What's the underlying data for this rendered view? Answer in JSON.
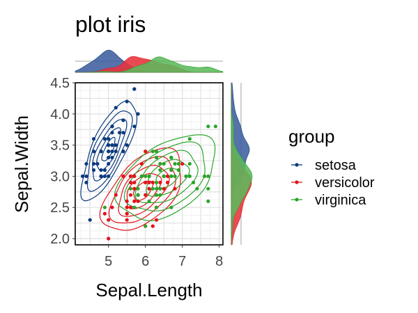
{
  "chart_data": {
    "type": "scatter",
    "title": "plot iris",
    "xlabel": "Sepal.Length",
    "ylabel": "Sepal.Width",
    "xlim": [
      4.1,
      8.1
    ],
    "ylim": [
      1.9,
      4.5
    ],
    "x_ticks": [
      5,
      6,
      7,
      8
    ],
    "y_ticks": [
      2.0,
      2.5,
      3.0,
      3.5,
      4.0,
      4.5
    ],
    "x_tick_labels": [
      "5",
      "6",
      "7",
      "8"
    ],
    "y_tick_labels": [
      "2.0",
      "2.5",
      "3.0",
      "3.5",
      "4.0",
      "4.5"
    ],
    "grid": true,
    "marginal_density": true,
    "density_contours": true,
    "legend": {
      "title": "group",
      "position": "right"
    },
    "series": [
      {
        "name": "setosa",
        "color": "#0b3a7e",
        "fill": "#3f5f9e",
        "points": [
          [
            5.1,
            3.5
          ],
          [
            4.9,
            3.0
          ],
          [
            4.7,
            3.2
          ],
          [
            4.6,
            3.1
          ],
          [
            5.0,
            3.6
          ],
          [
            5.4,
            3.9
          ],
          [
            4.6,
            3.4
          ],
          [
            5.0,
            3.4
          ],
          [
            4.4,
            2.9
          ],
          [
            4.9,
            3.1
          ],
          [
            5.4,
            3.7
          ],
          [
            4.8,
            3.4
          ],
          [
            4.8,
            3.0
          ],
          [
            4.3,
            3.0
          ],
          [
            5.8,
            4.0
          ],
          [
            5.7,
            4.4
          ],
          [
            5.4,
            3.9
          ],
          [
            5.1,
            3.5
          ],
          [
            5.7,
            3.8
          ],
          [
            5.1,
            3.8
          ],
          [
            5.4,
            3.4
          ],
          [
            5.1,
            3.7
          ],
          [
            4.6,
            3.6
          ],
          [
            5.1,
            3.3
          ],
          [
            4.8,
            3.4
          ],
          [
            5.0,
            3.0
          ],
          [
            5.0,
            3.4
          ],
          [
            5.2,
            3.5
          ],
          [
            5.2,
            3.4
          ],
          [
            4.7,
            3.2
          ],
          [
            4.8,
            3.1
          ],
          [
            5.4,
            3.4
          ],
          [
            5.2,
            4.1
          ],
          [
            5.5,
            4.2
          ],
          [
            4.9,
            3.1
          ],
          [
            5.0,
            3.2
          ],
          [
            5.5,
            3.5
          ],
          [
            4.9,
            3.6
          ],
          [
            4.4,
            3.0
          ],
          [
            5.1,
            3.4
          ],
          [
            5.0,
            3.5
          ],
          [
            4.5,
            2.3
          ],
          [
            4.4,
            3.2
          ],
          [
            5.0,
            3.5
          ],
          [
            5.1,
            3.8
          ],
          [
            4.8,
            3.0
          ],
          [
            5.1,
            3.8
          ],
          [
            4.6,
            3.2
          ],
          [
            5.3,
            3.7
          ],
          [
            5.0,
            3.3
          ]
        ]
      },
      {
        "name": "versicolor",
        "color": "#e3121b",
        "fill": "#e8323b",
        "points": [
          [
            7.0,
            3.2
          ],
          [
            6.4,
            3.2
          ],
          [
            6.9,
            3.1
          ],
          [
            5.5,
            2.3
          ],
          [
            6.5,
            2.8
          ],
          [
            5.7,
            2.8
          ],
          [
            6.3,
            3.3
          ],
          [
            4.9,
            2.4
          ],
          [
            6.6,
            2.9
          ],
          [
            5.2,
            2.7
          ],
          [
            5.0,
            2.0
          ],
          [
            5.9,
            3.0
          ],
          [
            6.0,
            2.2
          ],
          [
            6.1,
            2.9
          ],
          [
            5.6,
            2.9
          ],
          [
            6.7,
            3.1
          ],
          [
            5.6,
            3.0
          ],
          [
            5.8,
            2.7
          ],
          [
            6.2,
            2.2
          ],
          [
            5.6,
            2.5
          ],
          [
            5.9,
            3.2
          ],
          [
            6.1,
            2.8
          ],
          [
            6.3,
            2.5
          ],
          [
            6.1,
            2.8
          ],
          [
            6.4,
            2.9
          ],
          [
            6.6,
            3.0
          ],
          [
            6.8,
            2.8
          ],
          [
            6.7,
            3.0
          ],
          [
            6.0,
            2.9
          ],
          [
            5.7,
            2.6
          ],
          [
            5.5,
            2.4
          ],
          [
            5.5,
            2.4
          ],
          [
            5.8,
            2.7
          ],
          [
            6.0,
            2.7
          ],
          [
            5.4,
            3.0
          ],
          [
            6.0,
            3.4
          ],
          [
            6.7,
            3.1
          ],
          [
            6.3,
            2.3
          ],
          [
            5.6,
            3.0
          ],
          [
            5.5,
            2.5
          ],
          [
            5.5,
            2.6
          ],
          [
            6.1,
            3.0
          ],
          [
            5.8,
            2.6
          ],
          [
            5.0,
            2.3
          ],
          [
            5.6,
            2.7
          ],
          [
            5.7,
            3.0
          ],
          [
            5.7,
            2.9
          ],
          [
            6.2,
            2.9
          ],
          [
            5.1,
            2.5
          ],
          [
            5.7,
            2.8
          ]
        ]
      },
      {
        "name": "virginica",
        "color": "#2aa52a",
        "fill": "#5cb85c",
        "points": [
          [
            6.3,
            3.3
          ],
          [
            5.8,
            2.7
          ],
          [
            7.1,
            3.0
          ],
          [
            6.3,
            2.9
          ],
          [
            6.5,
            3.0
          ],
          [
            7.6,
            3.0
          ],
          [
            4.9,
            2.5
          ],
          [
            7.3,
            2.9
          ],
          [
            6.7,
            2.5
          ],
          [
            7.2,
            3.6
          ],
          [
            6.5,
            3.2
          ],
          [
            6.4,
            2.7
          ],
          [
            6.8,
            3.0
          ],
          [
            5.7,
            2.5
          ],
          [
            5.8,
            2.8
          ],
          [
            6.4,
            3.2
          ],
          [
            6.5,
            3.0
          ],
          [
            7.7,
            3.8
          ],
          [
            7.7,
            2.6
          ],
          [
            6.0,
            2.2
          ],
          [
            6.9,
            3.2
          ],
          [
            5.6,
            2.8
          ],
          [
            7.7,
            2.8
          ],
          [
            6.3,
            2.7
          ],
          [
            6.7,
            3.3
          ],
          [
            7.2,
            3.2
          ],
          [
            6.2,
            2.8
          ],
          [
            6.1,
            3.0
          ],
          [
            6.4,
            2.8
          ],
          [
            7.2,
            3.0
          ],
          [
            7.4,
            2.8
          ],
          [
            7.9,
            3.8
          ],
          [
            6.4,
            2.8
          ],
          [
            6.3,
            2.8
          ],
          [
            6.1,
            2.6
          ],
          [
            7.7,
            3.0
          ],
          [
            6.3,
            3.4
          ],
          [
            6.4,
            3.1
          ],
          [
            6.0,
            3.0
          ],
          [
            6.9,
            3.1
          ],
          [
            6.7,
            3.1
          ],
          [
            6.9,
            3.1
          ],
          [
            5.8,
            2.7
          ],
          [
            6.8,
            3.2
          ],
          [
            6.7,
            3.3
          ],
          [
            6.7,
            3.0
          ],
          [
            6.3,
            2.5
          ],
          [
            6.5,
            3.0
          ],
          [
            6.2,
            3.4
          ],
          [
            5.9,
            3.0
          ]
        ]
      }
    ]
  }
}
